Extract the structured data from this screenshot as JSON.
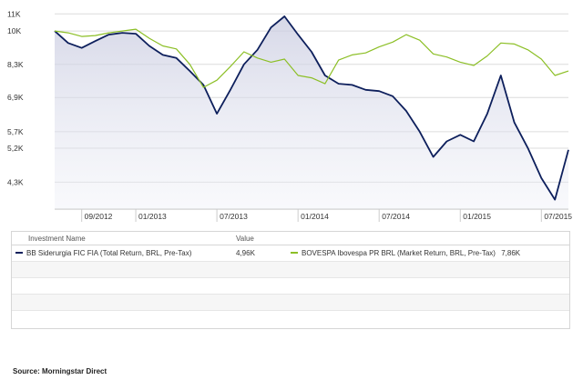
{
  "chart_data": {
    "type": "line",
    "y_ticks": [
      "11K",
      "10K",
      "8,3K",
      "6,9K",
      "5,7K",
      "5,2K",
      "4,3K"
    ],
    "x_ticks": [
      "09/2012",
      "01/2013",
      "07/2013",
      "01/2014",
      "07/2014",
      "01/2015",
      "07/2015"
    ],
    "log_scale": true,
    "grid": "horizontal",
    "x": [
      "2012-07",
      "2012-08",
      "2012-09",
      "2012-10",
      "2012-11",
      "2012-12",
      "2013-01",
      "2013-02",
      "2013-03",
      "2013-04",
      "2013-05",
      "2013-06",
      "2013-07",
      "2013-08",
      "2013-09",
      "2013-10",
      "2013-11",
      "2013-12",
      "2014-01",
      "2014-02",
      "2014-03",
      "2014-04",
      "2014-05",
      "2014-06",
      "2014-07",
      "2014-08",
      "2014-09",
      "2014-10",
      "2014-11",
      "2014-12",
      "2015-01",
      "2015-02",
      "2015-03",
      "2015-04",
      "2015-05",
      "2015-06",
      "2015-07",
      "2015-08",
      "2015-09"
    ],
    "series": [
      {
        "name": "BB Siderurgia FIC FIA (Total Return, BRL, Pre-Tax)",
        "color": "#0d1f5c",
        "area": true,
        "values": [
          10000,
          9350,
          9100,
          9450,
          9800,
          9900,
          9850,
          9200,
          8750,
          8600,
          8000,
          7400,
          6300,
          7200,
          8300,
          9000,
          10200,
          10850,
          9800,
          8900,
          7800,
          7450,
          7400,
          7200,
          7150,
          6950,
          6400,
          5700,
          4950,
          5400,
          5600,
          5400,
          6300,
          7800,
          6000,
          5200,
          4400,
          3900,
          5150
        ]
      },
      {
        "name": "BOVESPA Ibovespa PR BRL (Market Return, BRL, Pre-Tax)",
        "color": "#8cbf26",
        "area": false,
        "values": [
          10000,
          9900,
          9700,
          9750,
          9900,
          10000,
          10100,
          9600,
          9200,
          9050,
          8300,
          7300,
          7600,
          8200,
          8900,
          8600,
          8400,
          8550,
          7800,
          7700,
          7450,
          8500,
          8750,
          8850,
          9150,
          9400,
          9800,
          9500,
          8800,
          8650,
          8400,
          8250,
          8700,
          9350,
          9300,
          9000,
          8550,
          7800,
          8000
        ]
      }
    ]
  },
  "legend": {
    "col_name": "Investment Name",
    "col_value": "Value",
    "items": [
      {
        "name": "BB Siderurgia FIC FIA (Total Return, BRL, Pre-Tax)",
        "value": "4,96K",
        "color": "#0d1f5c"
      },
      {
        "name": "BOVESPA Ibovespa PR BRL (Market Return, BRL, Pre-Tax)",
        "value": "7,86K",
        "color": "#8cbf26"
      }
    ]
  },
  "source": "Source: Morningstar Direct"
}
